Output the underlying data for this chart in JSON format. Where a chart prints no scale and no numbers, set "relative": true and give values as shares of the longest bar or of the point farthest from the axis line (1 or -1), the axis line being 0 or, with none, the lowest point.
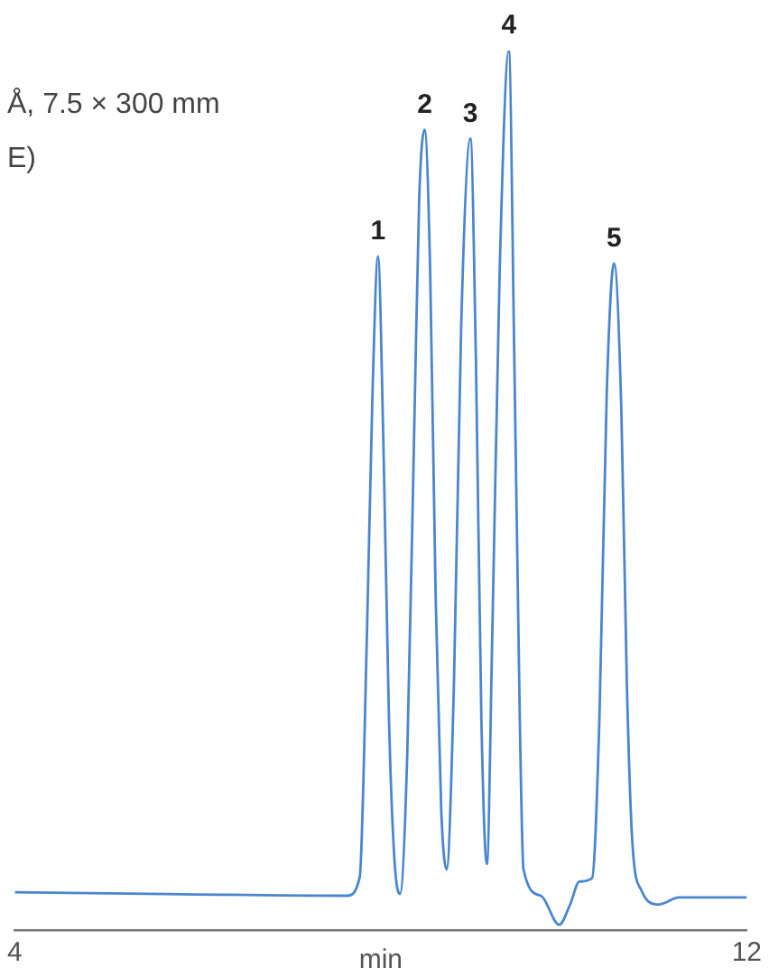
{
  "chart_data": {
    "type": "line",
    "relative": true,
    "xlabel": "min",
    "xlim": [
      4,
      12
    ],
    "xticks": [
      4,
      12
    ],
    "grid": false,
    "legend": false,
    "marker": "none",
    "line_style": "solid",
    "annotations": [
      "Å, 7.5 × 300 mm",
      "E)",
      {
        "text": "1",
        "x": 7.97,
        "y": 0.766
      },
      {
        "text": "2",
        "x": 8.48,
        "y": 0.91
      },
      {
        "text": "3",
        "x": 8.98,
        "y": 0.9
      },
      {
        "text": "4",
        "x": 9.4,
        "y": 1
      },
      {
        "text": "5",
        "x": 10.55,
        "y": 0.758
      }
    ],
    "series": [
      {
        "color": "#4a86d0",
        "x": [
          4.0,
          5.65,
          7.63,
          7.77,
          7.85,
          7.91,
          7.97,
          8.03,
          8.09,
          8.15,
          8.21,
          8.29,
          8.37,
          8.42,
          8.48,
          8.54,
          8.6,
          8.66,
          8.72,
          8.8,
          8.88,
          8.98,
          9.04,
          9.1,
          9.16,
          9.22,
          9.3,
          9.4,
          9.46,
          9.52,
          9.56,
          9.75,
          9.95,
          10.07,
          10.17,
          10.31,
          10.39,
          10.47,
          10.55,
          10.63,
          10.69,
          10.75,
          10.85,
          11.04,
          11.26,
          12.0
        ],
        "values": [
          0.043,
          0.041,
          0.039,
          0.06,
          0.34,
          0.61,
          0.766,
          0.55,
          0.24,
          0.08,
          0.041,
          0.2,
          0.59,
          0.83,
          0.91,
          0.75,
          0.38,
          0.14,
          0.069,
          0.28,
          0.69,
          0.9,
          0.65,
          0.24,
          0.075,
          0.34,
          0.75,
          1,
          0.65,
          0.24,
          0.069,
          0.039,
          0.006,
          0.029,
          0.055,
          0.059,
          0.24,
          0.61,
          0.758,
          0.59,
          0.28,
          0.1,
          0.045,
          0.029,
          0.037,
          0.037
        ]
      }
    ]
  }
}
